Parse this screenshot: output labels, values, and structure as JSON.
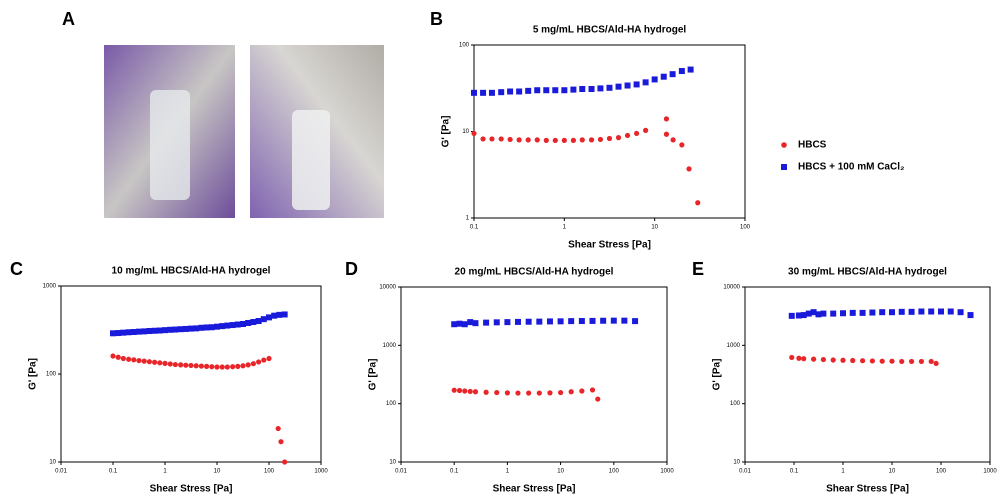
{
  "photo_panel": {
    "label": "A"
  },
  "chart_data": [
    {
      "type": "scatter",
      "panel": "B",
      "title": "5 mg/mL  HBCS/Ald-HA hydrogel",
      "xlabel": "Shear Stress [Pa]",
      "ylabel": "G' [Pa]",
      "xscale": "log",
      "yscale": "log",
      "xlim": [
        0.1,
        100
      ],
      "ylim": [
        1,
        100
      ],
      "xticks": [
        0.1,
        1,
        10,
        100
      ],
      "yticks": [
        1,
        10,
        100
      ],
      "legend": true,
      "series": [
        {
          "name": "HBCS",
          "color": "#e8262a",
          "marker": "circle",
          "x": [
            0.1,
            0.126,
            0.158,
            0.2,
            0.251,
            0.316,
            0.398,
            0.501,
            0.631,
            0.794,
            1,
            1.26,
            1.58,
            2,
            2.51,
            3.16,
            3.98,
            5.01,
            6.31,
            7.94,
            13.5,
            13.5,
            16,
            20,
            24,
            30
          ],
          "values": [
            9.5,
            8.2,
            8.2,
            8.2,
            8.1,
            8,
            8,
            8,
            7.9,
            7.9,
            7.9,
            7.9,
            8,
            8,
            8.1,
            8.3,
            8.5,
            9,
            9.5,
            10.3,
            14,
            9.3,
            8,
            7,
            3.7,
            1.5
          ]
        },
        {
          "name": "HBCS + 100 mM CaCl₂",
          "color": "#1a1adb",
          "marker": "square",
          "x": [
            0.1,
            0.126,
            0.158,
            0.2,
            0.251,
            0.316,
            0.398,
            0.501,
            0.631,
            0.794,
            1,
            1.26,
            1.58,
            2,
            2.51,
            3.16,
            3.98,
            5.01,
            6.31,
            7.94,
            10,
            12.6,
            15.8,
            20,
            25
          ],
          "values": [
            28,
            28,
            28,
            28.5,
            29,
            29,
            29.5,
            30,
            30,
            30,
            30,
            30.5,
            31,
            31,
            31.5,
            32,
            33,
            34,
            35,
            37,
            40,
            43,
            46,
            50,
            52
          ]
        }
      ]
    },
    {
      "type": "scatter",
      "panel": "C",
      "title": "10 mg/mL  HBCS/Ald-HA hydrogel",
      "xlabel": "Shear Stress [Pa]",
      "ylabel": "G' [Pa]",
      "xscale": "log",
      "yscale": "log",
      "xlim": [
        0.01,
        1000
      ],
      "ylim": [
        10,
        1000
      ],
      "xticks": [
        0.01,
        0.1,
        1,
        10,
        100,
        1000
      ],
      "yticks": [
        10,
        100,
        1000
      ],
      "legend": false,
      "series": [
        {
          "color": "#e8262a",
          "marker": "circle",
          "x": [
            0.1,
            0.126,
            0.158,
            0.2,
            0.251,
            0.316,
            0.398,
            0.501,
            0.631,
            0.794,
            1,
            1.26,
            1.58,
            2,
            2.51,
            3.16,
            3.98,
            5.01,
            6.31,
            7.94,
            10,
            12.6,
            15.8,
            20,
            25.1,
            31.6,
            39.8,
            50.1,
            63.1,
            79.4,
            100,
            150,
            170,
            200
          ],
          "values": [
            160,
            155,
            150,
            147,
            145,
            142,
            140,
            138,
            136,
            134,
            132,
            130,
            128,
            127,
            126,
            125,
            124,
            123,
            122,
            121,
            120,
            120,
            120,
            121,
            122,
            124,
            127,
            131,
            137,
            144,
            150,
            24,
            17,
            10
          ]
        },
        {
          "color": "#1a1adb",
          "marker": "square",
          "x": [
            0.1,
            0.126,
            0.158,
            0.2,
            0.251,
            0.316,
            0.398,
            0.501,
            0.631,
            0.794,
            1,
            1.26,
            1.58,
            2,
            2.51,
            3.16,
            3.98,
            5.01,
            6.31,
            7.94,
            10,
            12.6,
            15.8,
            20,
            25.1,
            31.6,
            39.8,
            50.1,
            63.1,
            79.4,
            100,
            126,
            158,
            200
          ],
          "values": [
            290,
            292,
            295,
            298,
            300,
            303,
            305,
            308,
            310,
            312,
            315,
            318,
            320,
            323,
            325,
            328,
            330,
            335,
            338,
            340,
            345,
            350,
            355,
            360,
            365,
            370,
            380,
            390,
            400,
            420,
            440,
            460,
            470,
            475
          ]
        }
      ]
    },
    {
      "type": "scatter",
      "panel": "D",
      "title": "20 mg/mL  HBCS/Ald-HA hydrogel",
      "xlabel": "Shear Stress [Pa]",
      "ylabel": "G' [Pa]",
      "xscale": "log",
      "yscale": "log",
      "xlim": [
        0.01,
        1000
      ],
      "ylim": [
        10,
        10000
      ],
      "xticks": [
        0.01,
        0.1,
        1,
        10,
        100,
        1000
      ],
      "yticks": [
        10,
        100,
        1000,
        10000
      ],
      "legend": false,
      "series": [
        {
          "color": "#e8262a",
          "marker": "circle",
          "x": [
            0.1,
            0.126,
            0.158,
            0.2,
            0.251,
            0.398,
            0.631,
            1,
            1.58,
            2.51,
            3.98,
            6.31,
            10,
            15.8,
            25.1,
            39.8,
            50
          ],
          "values": [
            170,
            168,
            165,
            162,
            160,
            157,
            155,
            153,
            152,
            152,
            152,
            153,
            155,
            160,
            165,
            172,
            120
          ]
        },
        {
          "color": "#1a1adb",
          "marker": "square",
          "x": [
            0.1,
            0.126,
            0.158,
            0.2,
            0.251,
            0.398,
            0.631,
            1,
            1.58,
            2.51,
            3.98,
            6.31,
            10,
            15.8,
            25.1,
            39.8,
            63.1,
            100,
            158,
            251
          ],
          "values": [
            2300,
            2350,
            2300,
            2500,
            2400,
            2450,
            2480,
            2500,
            2520,
            2540,
            2550,
            2570,
            2580,
            2600,
            2610,
            2620,
            2640,
            2650,
            2650,
            2600
          ]
        }
      ]
    },
    {
      "type": "scatter",
      "panel": "E",
      "title": "30 mg/mL  HBCS/Ald-HA hydrogel",
      "xlabel": "Shear Stress [Pa]",
      "ylabel": "G' [Pa]",
      "xscale": "log",
      "yscale": "log",
      "xlim": [
        0.01,
        1000
      ],
      "ylim": [
        10,
        10000
      ],
      "xticks": [
        0.01,
        0.1,
        1,
        10,
        100,
        1000
      ],
      "yticks": [
        10,
        100,
        1000,
        10000
      ],
      "legend": false,
      "series": [
        {
          "color": "#e8262a",
          "marker": "circle",
          "x": [
            0.09,
            0.126,
            0.158,
            0.251,
            0.398,
            0.631,
            1,
            1.58,
            2.51,
            3.98,
            6.31,
            10,
            15.8,
            25.1,
            39.8,
            63.1,
            79.4
          ],
          "values": [
            620,
            600,
            590,
            580,
            570,
            560,
            555,
            550,
            545,
            540,
            535,
            535,
            530,
            530,
            530,
            530,
            490
          ]
        },
        {
          "color": "#1a1adb",
          "marker": "square",
          "x": [
            0.09,
            0.126,
            0.158,
            0.2,
            0.251,
            0.316,
            0.398,
            0.631,
            1,
            1.58,
            2.51,
            3.98,
            6.31,
            10,
            15.8,
            25.1,
            39.8,
            63.1,
            100,
            158,
            251,
            400
          ],
          "values": [
            3200,
            3250,
            3300,
            3500,
            3700,
            3400,
            3500,
            3500,
            3550,
            3600,
            3600,
            3650,
            3700,
            3700,
            3750,
            3750,
            3800,
            3800,
            3800,
            3800,
            3700,
            3300
          ]
        }
      ]
    }
  ]
}
